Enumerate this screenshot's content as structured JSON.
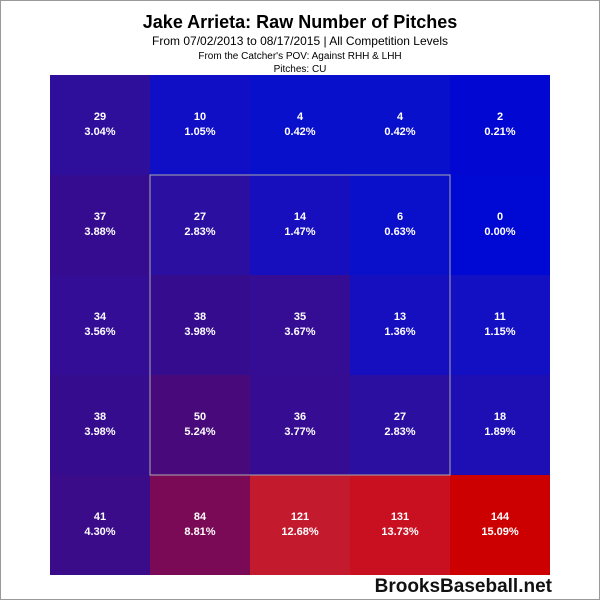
{
  "chart_data": {
    "type": "heatmap",
    "title": "Jake Arrieta: Raw Number of Pitches",
    "subtitle": "From 07/02/2013 to 08/17/2015 | All Competition Levels",
    "note": "From the Catcher's POV:  Against RHH & LHH",
    "pitches": "Pitches:  CU",
    "watermark": "BrooksBaseball.net",
    "counts": [
      [
        29,
        10,
        4,
        4,
        2
      ],
      [
        37,
        27,
        14,
        6,
        0
      ],
      [
        34,
        38,
        35,
        13,
        11
      ],
      [
        38,
        50,
        36,
        27,
        18
      ],
      [
        41,
        84,
        121,
        131,
        144
      ]
    ],
    "percents": [
      [
        3.04,
        1.05,
        0.42,
        0.42,
        0.21
      ],
      [
        3.88,
        2.83,
        1.47,
        0.63,
        0.0
      ],
      [
        3.56,
        3.98,
        3.67,
        1.36,
        1.15
      ],
      [
        3.98,
        5.24,
        3.77,
        2.83,
        1.89
      ],
      [
        4.3,
        8.81,
        12.68,
        13.73,
        15.09
      ]
    ],
    "percent_labels": [
      [
        "3.04%",
        "1.05%",
        "0.42%",
        "0.42%",
        "0.21%"
      ],
      [
        "3.88%",
        "2.83%",
        "1.47%",
        "0.63%",
        "0.00%"
      ],
      [
        "3.56%",
        "3.98%",
        "3.67%",
        "1.36%",
        "1.15%"
      ],
      [
        "3.98%",
        "5.24%",
        "3.77%",
        "2.83%",
        "1.89%"
      ],
      [
        "4.30%",
        "8.81%",
        "12.68%",
        "13.73%",
        "15.09%"
      ]
    ],
    "colors": [
      [
        "#2e0f9c",
        "#100fc6",
        "#0810cc",
        "#0810cc",
        "#0208d2"
      ],
      [
        "#350c90",
        "#2b0fa0",
        "#170fbd",
        "#0a0fca",
        "#0008d4"
      ],
      [
        "#330d96",
        "#360c8f",
        "#340d94",
        "#150fbf",
        "#130fc2"
      ],
      [
        "#360c8f",
        "#480a7a",
        "#350c92",
        "#2b0fa0",
        "#1d0fb4"
      ],
      [
        "#3a0c8a",
        "#7a0a55",
        "#c41a2e",
        "#c81020",
        "#cc0000"
      ]
    ]
  }
}
